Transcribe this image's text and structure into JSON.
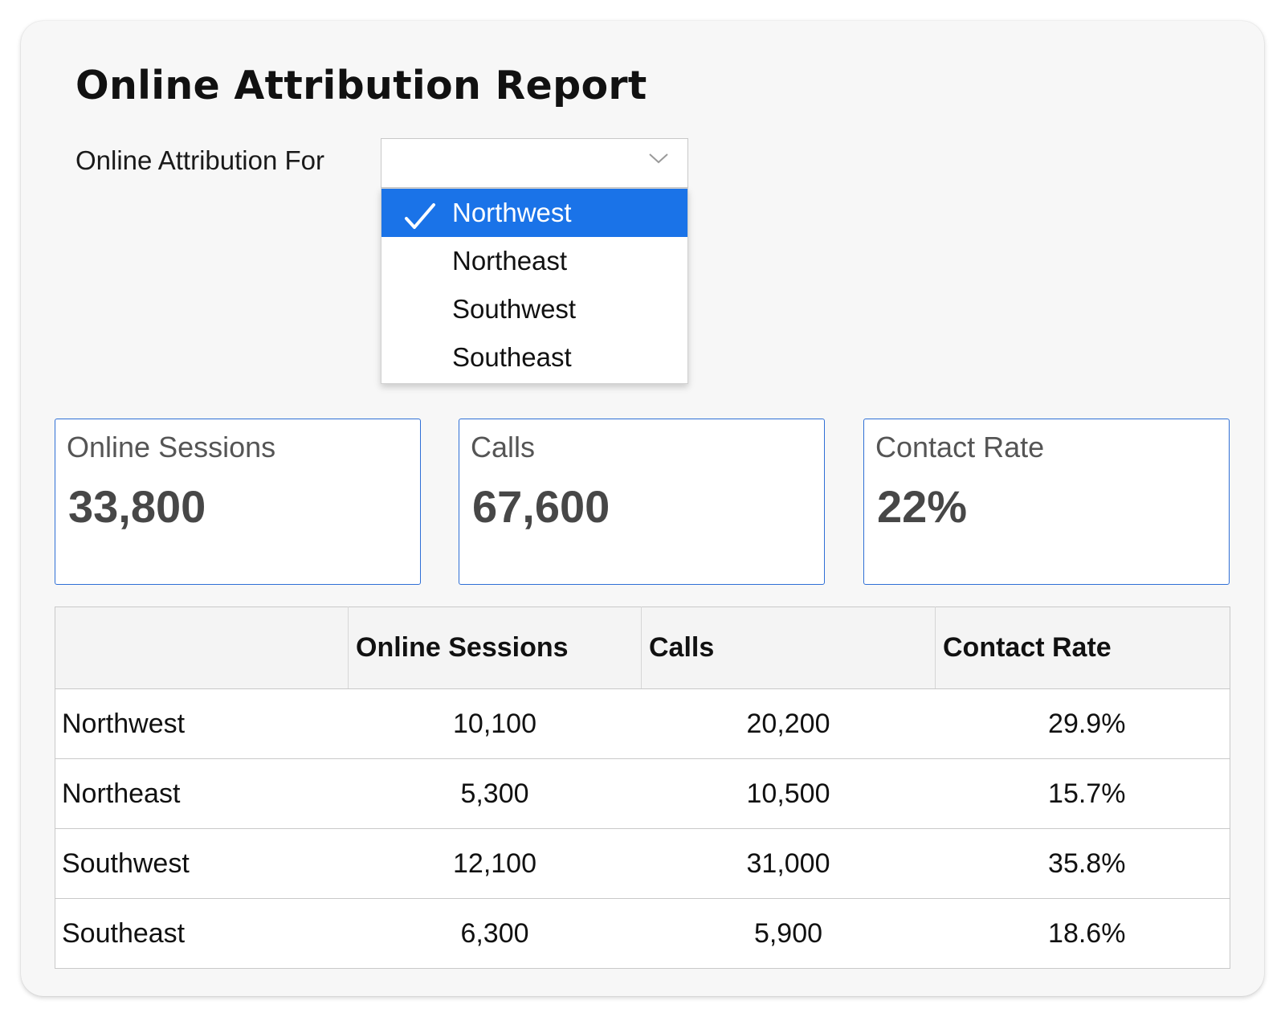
{
  "report": {
    "title": "Online Attribution Report"
  },
  "filter": {
    "label": "Online Attribution For",
    "value": "",
    "options": [
      {
        "label": "Northwest",
        "selected": true
      },
      {
        "label": "Northeast",
        "selected": false
      },
      {
        "label": "Southwest",
        "selected": false
      },
      {
        "label": "Southeast",
        "selected": false
      }
    ]
  },
  "metrics": [
    {
      "label": "Online Sessions",
      "value": "33,800"
    },
    {
      "label": "Calls",
      "value": "67,600"
    },
    {
      "label": "Contact Rate",
      "value": "22%"
    }
  ],
  "table": {
    "headers": [
      "",
      "Online Sessions",
      "Calls",
      "Contact Rate"
    ],
    "rows": [
      [
        "Northwest",
        "10,100",
        "20,200",
        "29.9%"
      ],
      [
        "Northeast",
        "5,300",
        "10,500",
        "15.7%"
      ],
      [
        "Southwest",
        "12,100",
        "31,000",
        "35.8%"
      ],
      [
        "Southeast",
        "6,300",
        "5,900",
        "18.6%"
      ]
    ]
  },
  "colors": {
    "accent": "#1a73e8",
    "card_border": "#2f6fd6",
    "panel_background": "#f7f7f7"
  },
  "icons": {
    "select_arrow": "chevron-down-icon",
    "selected_mark": "checkmark-icon"
  }
}
